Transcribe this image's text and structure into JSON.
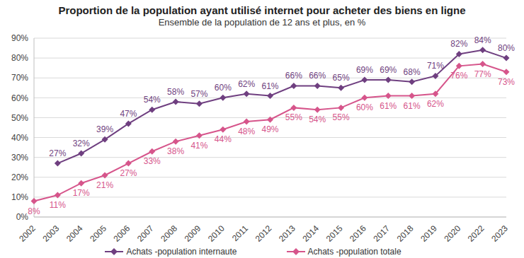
{
  "chart_data": {
    "type": "line",
    "title": "Proportion de la population ayant utilisé internet pour acheter des biens en ligne",
    "subtitle": "Ensemble de la population de 12 ans et plus, en %",
    "categories": [
      "2002",
      "2003",
      "2004",
      "2005",
      "2006",
      "2007",
      "2008",
      "2009",
      "2010",
      "2011",
      "2012",
      "2013",
      "2014",
      "2015",
      "2016",
      "2017",
      "2018",
      "2019",
      "2020",
      "2022",
      "2023"
    ],
    "series": [
      {
        "name": "Achats -population internaute",
        "color": "#6f3f80",
        "marker": "diamond",
        "values": [
          null,
          27,
          32,
          39,
          47,
          54,
          58,
          57,
          60,
          62,
          61,
          66,
          66,
          65,
          69,
          69,
          68,
          71,
          82,
          84,
          80
        ],
        "value_labels": [
          null,
          "27%",
          "32%",
          "39%",
          "47%",
          "54%",
          "58%",
          "57%",
          "60%",
          "62%",
          "61%",
          "66%",
          "66%",
          "65%",
          "69%",
          "69%",
          "68%",
          "71%",
          "82%",
          "84%",
          "80%"
        ]
      },
      {
        "name": "Achats -population totale",
        "color": "#d6558b",
        "marker": "diamond",
        "values": [
          8,
          11,
          17,
          21,
          27,
          33,
          38,
          41,
          44,
          48,
          49,
          55,
          54,
          55,
          60,
          61,
          61,
          62,
          76,
          77,
          73
        ],
        "value_labels": [
          "8%",
          "11%",
          "17%",
          "21%",
          "27%",
          "33%",
          "38%",
          "41%",
          "44%",
          "48%",
          "49%",
          "55%",
          "54%",
          "55%",
          "60%",
          "61%",
          "61%",
          "62%",
          "76%",
          "77%",
          "73%"
        ]
      }
    ],
    "ylim": [
      0,
      90
    ],
    "yticks": [
      {
        "value": 0,
        "label": "0%"
      },
      {
        "value": 10,
        "label": "10%"
      },
      {
        "value": 20,
        "label": "20%"
      },
      {
        "value": 30,
        "label": "30%"
      },
      {
        "value": 40,
        "label": "40%"
      },
      {
        "value": 50,
        "label": "50%"
      },
      {
        "value": 60,
        "label": "60%"
      },
      {
        "value": 70,
        "label": "70%"
      },
      {
        "value": 80,
        "label": "80%"
      },
      {
        "value": 90,
        "label": "90%"
      }
    ],
    "grid": true,
    "legend": "bottom",
    "data_labels": true
  }
}
